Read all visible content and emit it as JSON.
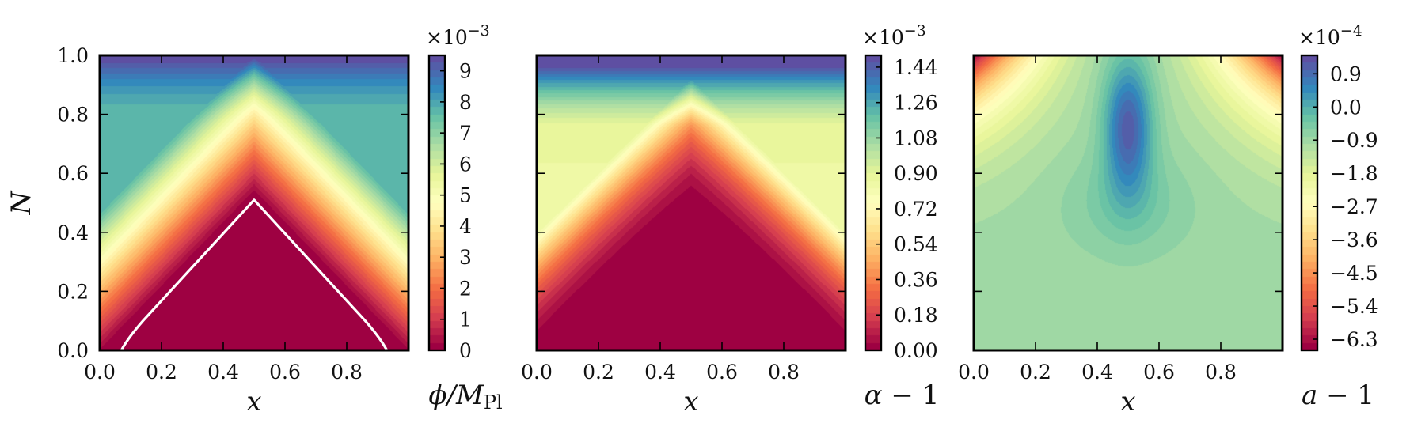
{
  "chart_data": [
    {
      "type": "heatmap",
      "variant": "filled-contour",
      "colormap": "Spectral",
      "xlabel": "x",
      "ylabel": "N",
      "xlim": [
        0,
        1
      ],
      "ylim": [
        0,
        1
      ],
      "x_ticks": [
        "0.0",
        "0.2",
        "0.4",
        "0.6",
        "0.8"
      ],
      "y_ticks": [
        "0.0",
        "0.2",
        "0.4",
        "0.6",
        "0.8",
        "1.0"
      ],
      "colorbar": {
        "label": "ϕ/M",
        "label_sub": "Pl",
        "multiplier": "×10",
        "multiplier_exp": "−3",
        "range": [
          0,
          9.5
        ],
        "ticks": [
          "0",
          "1",
          "2",
          "3",
          "4",
          "5",
          "6",
          "7",
          "8",
          "9"
        ]
      },
      "boundary_curve": {
        "color": "#ffffff",
        "x": [
          0.07,
          0.09,
          0.14,
          0.5,
          0.86,
          0.91,
          0.93
        ],
        "y": [
          0.0,
          0.04,
          0.1,
          0.51,
          0.1,
          0.04,
          0.0
        ]
      }
    },
    {
      "type": "heatmap",
      "variant": "filled-contour",
      "colormap": "Spectral",
      "xlabel": "x",
      "xlim": [
        0,
        1
      ],
      "ylim": [
        0,
        1
      ],
      "x_ticks": [
        "0.0",
        "0.2",
        "0.4",
        "0.6",
        "0.8"
      ],
      "colorbar": {
        "label": "α − 1",
        "multiplier": "×10",
        "multiplier_exp": "−3",
        "range": [
          0,
          1.5
        ],
        "ticks": [
          "0.00",
          "0.18",
          "0.36",
          "0.54",
          "0.72",
          "0.90",
          "1.08",
          "1.26",
          "1.44"
        ]
      }
    },
    {
      "type": "heatmap",
      "variant": "filled-contour",
      "colormap": "Spectral",
      "xlabel": "x",
      "xlim": [
        0,
        1
      ],
      "ylim": [
        0,
        1
      ],
      "x_ticks": [
        "0.0",
        "0.2",
        "0.4",
        "0.6",
        "0.8"
      ],
      "colorbar": {
        "label": "a − 1",
        "multiplier": "×10",
        "multiplier_exp": "−4",
        "range": [
          -6.6,
          1.4
        ],
        "ticks": [
          "−6.3",
          "−5.4",
          "−4.5",
          "−3.6",
          "−2.7",
          "−1.8",
          "−0.9",
          "0.0",
          "0.9"
        ]
      }
    }
  ]
}
